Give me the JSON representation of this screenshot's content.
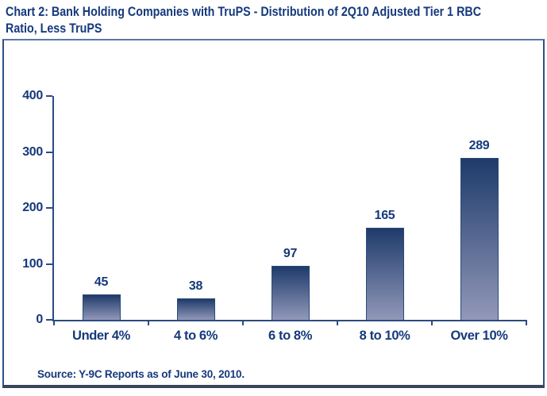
{
  "header": {
    "line1": "Chart 2: Bank Holding Companies with TruPS -  Distribution of 2Q10 Adjusted Tier 1 RBC",
    "line2": "Ratio, Less TruPS"
  },
  "colors": {
    "navy_text": "#15397b",
    "axis": "#2c4b82",
    "bar_gradient_top": "#1e3b6b",
    "bar_gradient_bottom": "#9298b9",
    "bar_border": "#2a4979"
  },
  "chart_data": {
    "type": "bar",
    "title": "Chart 2: Bank Holding Companies with TruPS -  Distribution of 2Q10 Adjusted Tier 1 RBC Ratio, Less TruPS",
    "categories": [
      "Under 4%",
      "4 to 6%",
      "6 to 8%",
      "8 to 10%",
      "Over 10%"
    ],
    "values": [
      45,
      38,
      97,
      165,
      289
    ],
    "xlabel": "",
    "ylabel": "",
    "ylim": [
      0,
      400
    ],
    "yticks": [
      0,
      100,
      200,
      300,
      400
    ],
    "grid": false,
    "legend": "none",
    "source_note": "Source: Y-9C Reports as of June 30, 2010."
  }
}
